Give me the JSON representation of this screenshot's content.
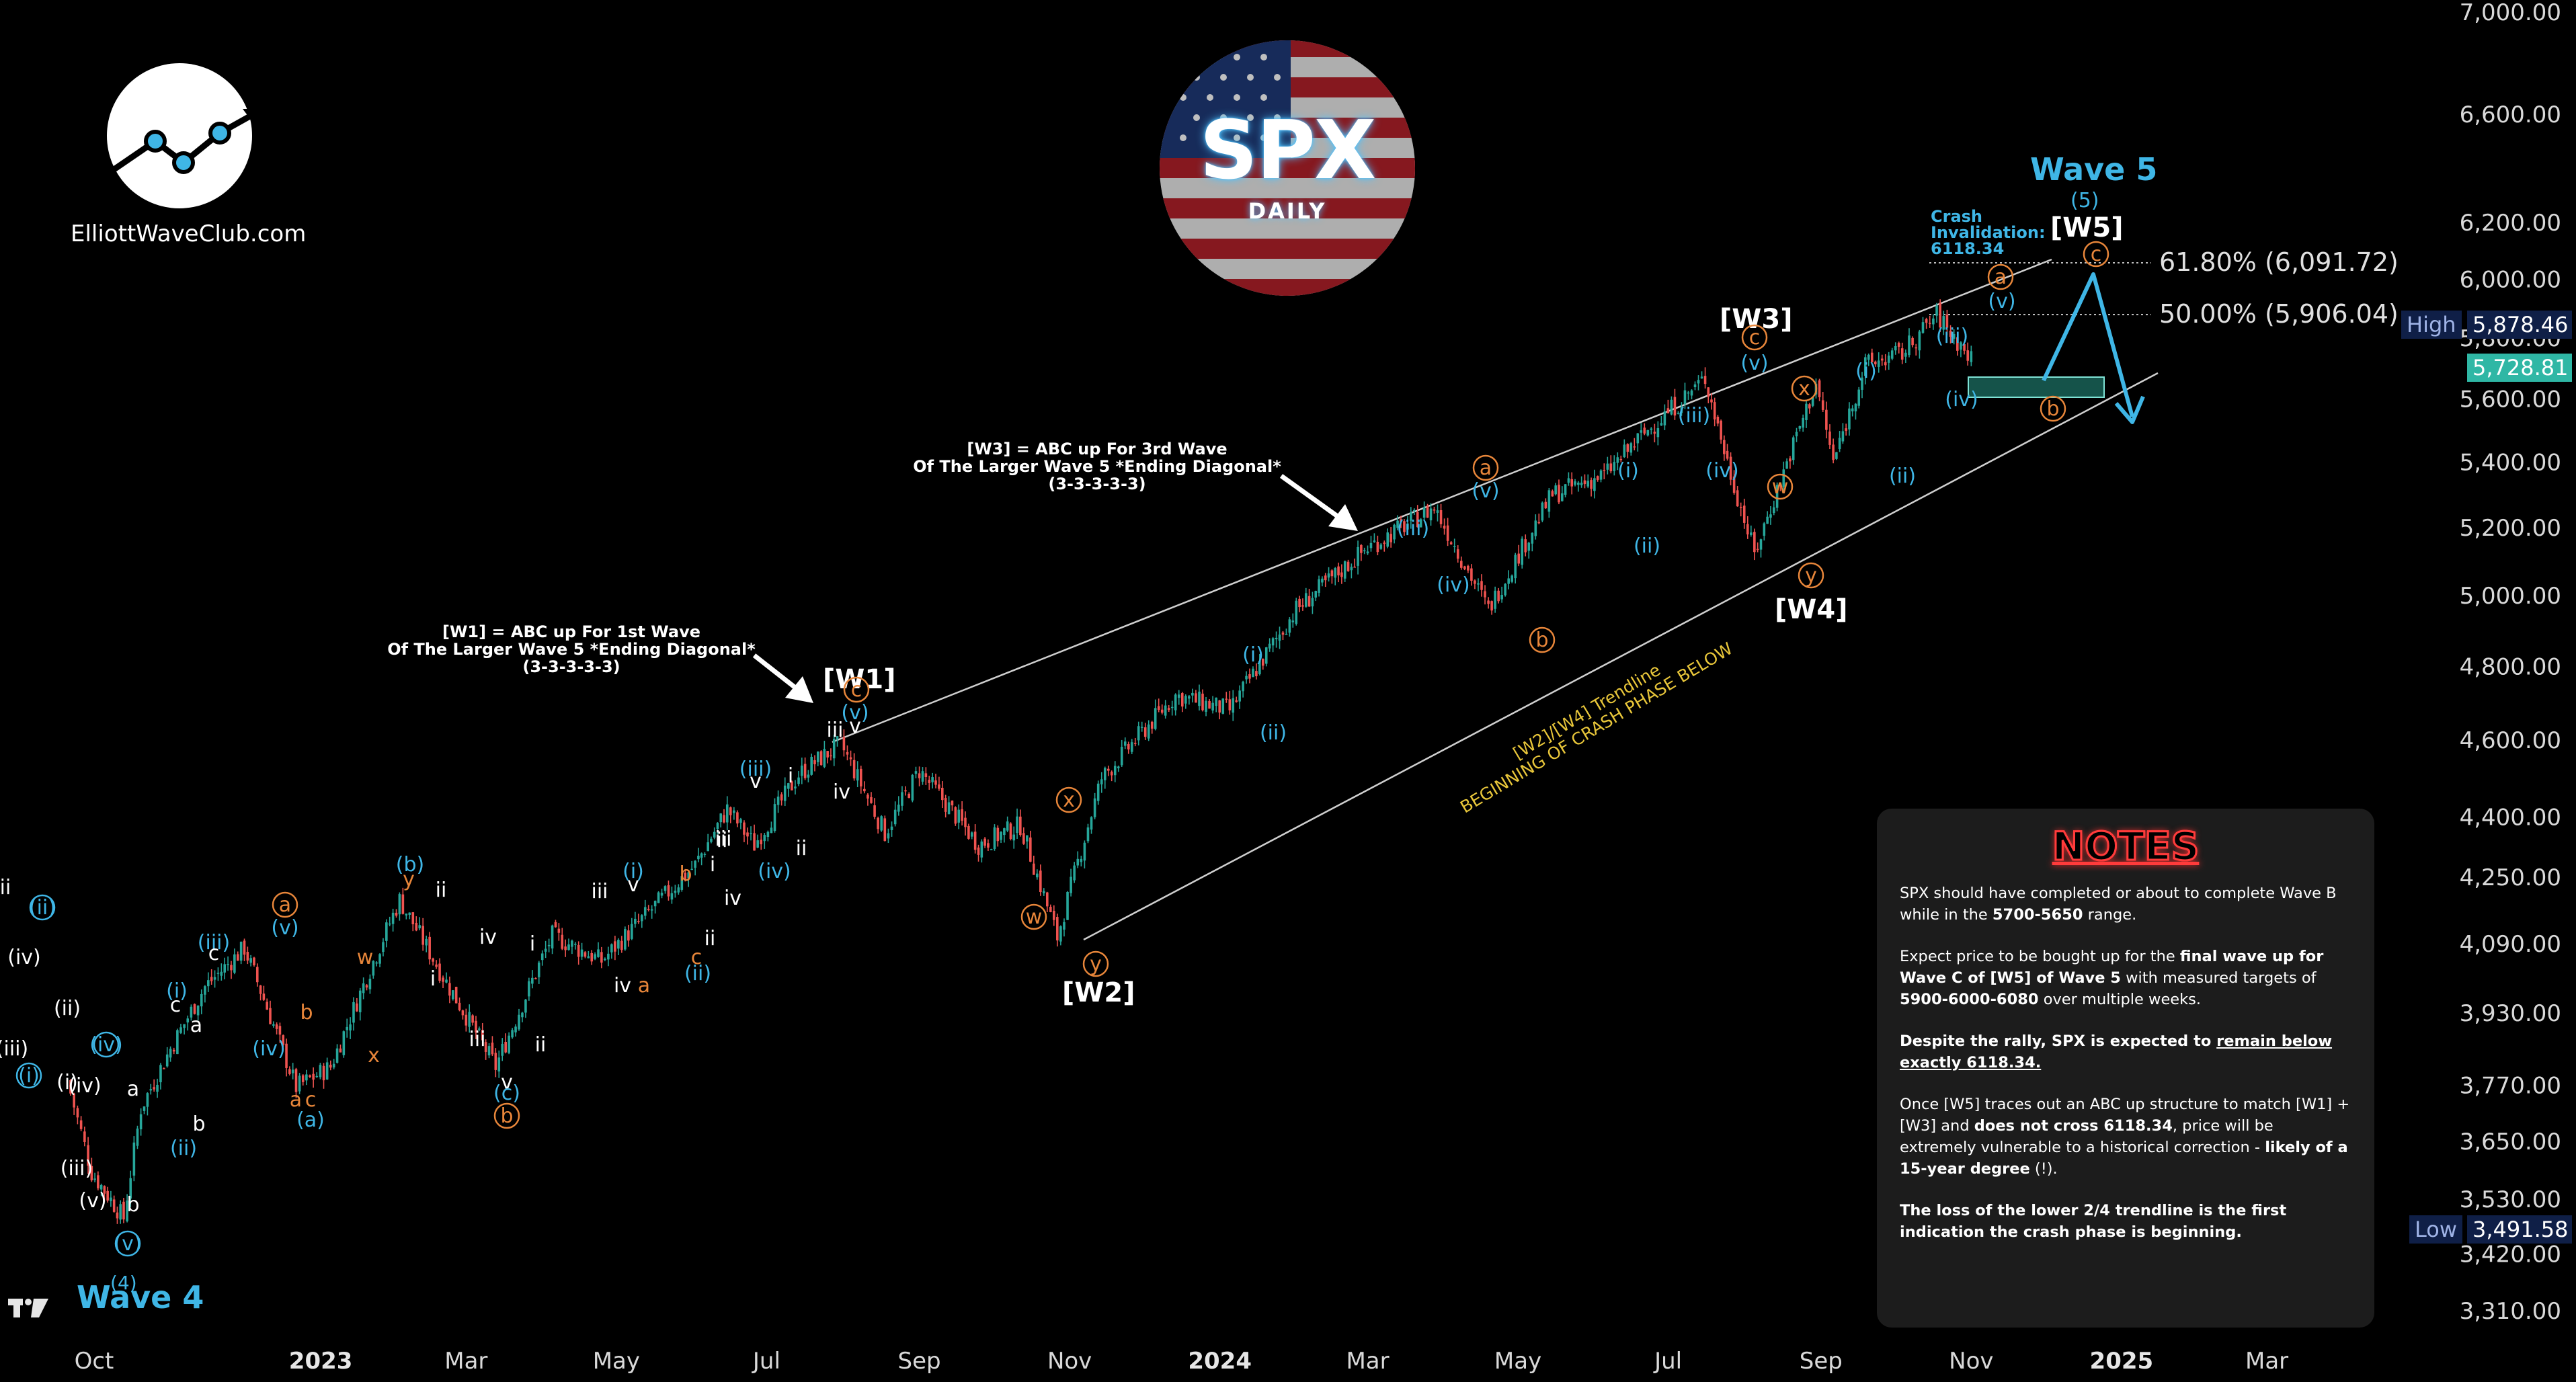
{
  "logo": {
    "site": "ElliottWaveClub.com"
  },
  "badge": {
    "title": "SPX",
    "subtitle": "DAILY"
  },
  "colors": {
    "up": "#26a69a",
    "down": "#ef5350",
    "cyan": "#3fb6e6",
    "orange": "#e8863a",
    "trend": "#cfcfcf",
    "yellow": "#e8c63a",
    "zone": "#2fb7a5"
  },
  "price_axis": {
    "ticks": [
      "7,000.00",
      "6,600.00",
      "6,200.00",
      "6,000.00",
      "5,800.00",
      "5,600.00",
      "5,400.00",
      "5,200.00",
      "5,000.00",
      "4,800.00",
      "4,600.00",
      "4,400.00",
      "4,250.00",
      "4,090.00",
      "3,930.00",
      "3,770.00",
      "3,650.00",
      "3,530.00",
      "3,420.00",
      "3,310.00"
    ],
    "high_label": "High",
    "high_value": "5,878.46",
    "last_value": "5,728.81",
    "low_label": "Low",
    "low_value": "3,491.58"
  },
  "time_axis": {
    "ticks": [
      {
        "label": "Oct",
        "bold": false
      },
      {
        "label": "2023",
        "bold": true
      },
      {
        "label": "Mar",
        "bold": false
      },
      {
        "label": "May",
        "bold": false
      },
      {
        "label": "Jul",
        "bold": false
      },
      {
        "label": "Sep",
        "bold": false
      },
      {
        "label": "Nov",
        "bold": false
      },
      {
        "label": "2024",
        "bold": true
      },
      {
        "label": "Mar",
        "bold": false
      },
      {
        "label": "May",
        "bold": false
      },
      {
        "label": "Jul",
        "bold": false
      },
      {
        "label": "Sep",
        "bold": false
      },
      {
        "label": "Nov",
        "bold": false
      },
      {
        "label": "2025",
        "bold": true
      },
      {
        "label": "Mar",
        "bold": false
      }
    ]
  },
  "fib_levels": [
    {
      "label": "61.80% (6,091.72)",
      "price": 6091.72
    },
    {
      "label": "50.00% (5,906.04)",
      "price": 5906.04
    }
  ],
  "wave_labels": {
    "w1": "[W1]",
    "w2": "[W2]",
    "w3": "[W3]",
    "w4": "[W4]",
    "w5": "[W5]",
    "wave5": "Wave 5",
    "wave5_sub": "(5)",
    "wave4": "Wave 4",
    "wave4_sub": "(4)"
  },
  "annotations": {
    "w1_lines": [
      "[W1] = ABC up For 1st Wave",
      "Of The Larger Wave 5 *Ending Diagonal*",
      "(3-3-3-3-3)"
    ],
    "w3_lines": [
      "[W3] = ABC up For 3rd Wave",
      "Of The Larger Wave 5 *Ending Diagonal*",
      "(3-3-3-3-3)"
    ],
    "crash_lines": [
      "Crash",
      "Invalidation:",
      "6118.34"
    ],
    "trendline_lines": [
      "[W2]/[W4] Trendline",
      "BEGINNING OF CRASH PHASE BELOW"
    ]
  },
  "notes": {
    "title": "NOTES",
    "p1_a": "SPX should have completed or about to complete Wave B while in the ",
    "p1_b": "5700-5650",
    "p1_c": " range.",
    "p2_a": "Expect price to be bought up for the ",
    "p2_b": "final wave up for Wave C of [W5] of Wave 5",
    "p2_c": " with measured targets of ",
    "p2_d": "5900-6000-6080",
    "p2_e": " over multiple weeks.",
    "p3_a": "Despite the rally, SPX",
    "p3_b": " is expected to ",
    "p3_c": "remain below exactly 6118.34.",
    "p4_a": "Once [W5] traces out an ABC up structure to match [W1] + [W3] and ",
    "p4_b": "does not cross 6118.34",
    "p4_c": ", price will be extremely vulnerable to a historical correction - ",
    "p4_d": "likely of a 15-year degree",
    "p4_e": " (!).",
    "p5": "The loss of the lower 2/4 trendline is the first indication the crash phase is beginning."
  },
  "chart_data": {
    "type": "candlestick",
    "title": "SPX DAILY",
    "xlabel": "",
    "ylabel": "",
    "yscale": "log",
    "ylim": [
      3250,
      7150
    ],
    "x_range": [
      "2022-09-20",
      "2025-03-31"
    ],
    "high": 5878.46,
    "low": 3491.58,
    "last": 5728.81,
    "swing_path": [
      [
        "2022-09-20",
        3780
      ],
      [
        "2022-09-30",
        3585
      ],
      [
        "2022-10-13",
        3491.58
      ],
      [
        "2022-10-20",
        3720
      ],
      [
        "2022-11-01",
        3850
      ],
      [
        "2022-11-15",
        3990
      ],
      [
        "2022-12-01",
        4080
      ],
      [
        "2022-12-22",
        3765
      ],
      [
        "2023-01-05",
        3810
      ],
      [
        "2023-02-02",
        4195
      ],
      [
        "2023-02-21",
        4000
      ],
      [
        "2023-03-13",
        3810
      ],
      [
        "2023-04-05",
        4110
      ],
      [
        "2023-04-25",
        4050
      ],
      [
        "2023-05-10",
        4140
      ],
      [
        "2023-06-02",
        4280
      ],
      [
        "2023-06-15",
        4420
      ],
      [
        "2023-06-26",
        4330
      ],
      [
        "2023-07-14",
        4510
      ],
      [
        "2023-07-31",
        4590
      ],
      [
        "2023-08-18",
        4360
      ],
      [
        "2023-09-01",
        4520
      ],
      [
        "2023-09-25",
        4330
      ],
      [
        "2023-10-12",
        4380
      ],
      [
        "2023-10-27",
        4105
      ],
      [
        "2023-11-14",
        4500
      ],
      [
        "2023-12-14",
        4720
      ],
      [
        "2024-01-05",
        4680
      ],
      [
        "2024-02-01",
        4960
      ],
      [
        "2024-03-01",
        5140
      ],
      [
        "2024-03-28",
        5260
      ],
      [
        "2024-04-19",
        4960
      ],
      [
        "2024-05-15",
        5300
      ],
      [
        "2024-06-05",
        5360
      ],
      [
        "2024-06-20",
        5480
      ],
      [
        "2024-07-16",
        5667
      ],
      [
        "2024-07-25",
        5400
      ],
      [
        "2024-08-05",
        5120
      ],
      [
        "2024-08-30",
        5650
      ],
      [
        "2024-09-06",
        5400
      ],
      [
        "2024-09-19",
        5710
      ],
      [
        "2024-10-04",
        5750
      ],
      [
        "2024-10-18",
        5878.46
      ],
      [
        "2024-11-01",
        5728.81
      ]
    ],
    "projection": [
      [
        "2024-11-01",
        5728.81
      ],
      [
        "2024-11-05",
        5705
      ],
      [
        "2024-12-05",
        6080
      ],
      [
        "2024-12-31",
        5540
      ]
    ],
    "target_zone": {
      "from": 5650,
      "to": 5700,
      "x0": "2024-10-10",
      "x1": "2024-11-28"
    },
    "trendlines": [
      {
        "name": "upper",
        "x0": "2023-07-31",
        "y0": 4590,
        "x1": "2024-12-10",
        "y1": 6000
      },
      {
        "name": "lower",
        "x0": "2023-10-27",
        "y0": 4105,
        "x1": "2024-12-10",
        "y1": 5620
      }
    ],
    "fib_levels": [
      {
        "ratio": "61.80%",
        "price": 6091.72
      },
      {
        "ratio": "50.00%",
        "price": 5906.04
      }
    ]
  }
}
